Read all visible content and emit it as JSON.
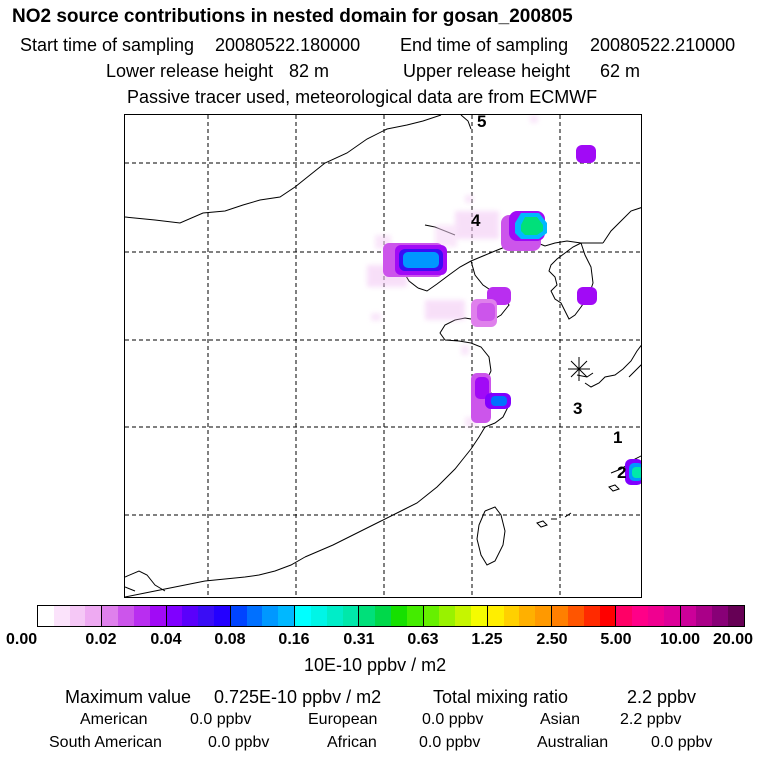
{
  "header": {
    "title": "NO2 source contributions in nested domain for gosan_200805",
    "start_label": "Start time of sampling",
    "start_value": "20080522.180000",
    "end_label": "End time of sampling",
    "end_value": "20080522.210000",
    "lower_label": "Lower release height",
    "lower_value": "82 m",
    "upper_label": "Upper release height",
    "upper_value": "62 m",
    "tracer_note": "Passive tracer used, meteorological data are from ECMWF"
  },
  "map": {
    "trajectory_labels": [
      "5",
      "4",
      "3",
      "1",
      "2"
    ],
    "receptor_icon": "asterisk-icon",
    "concentration_levels": [
      "0.02",
      "0.04",
      "0.08",
      "0.16",
      "0.31",
      "0.63"
    ]
  },
  "colorbar": {
    "tick_labels": [
      "0.00",
      "0.02",
      "0.04",
      "0.08",
      "0.16",
      "0.31",
      "0.63",
      "1.25",
      "2.50",
      "5.00",
      "10.00",
      "20.00"
    ],
    "colors": [
      [
        "#ffffff",
        "#fbe3fb",
        "#f5c8f6",
        "#eeaaf2"
      ],
      [
        "#df80ec",
        "#cc55eb",
        "#b92ef0",
        "#a10af6"
      ],
      [
        "#8000ff",
        "#5a00fb",
        "#3a0df5",
        "#2400ff"
      ],
      [
        "#0044ff",
        "#0070ff",
        "#0098ff",
        "#00b8ff"
      ],
      [
        "#00ffff",
        "#00f5e6",
        "#00edc8",
        "#00e8aa"
      ],
      [
        "#00e07a",
        "#00d84a",
        "#16e000",
        "#44ec00"
      ],
      [
        "#66f000",
        "#99f200",
        "#c6f500",
        "#f5fc00"
      ],
      [
        "#ffee00",
        "#ffd000",
        "#ffb000",
        "#ff9900"
      ],
      [
        "#ff7f00",
        "#ff5500",
        "#ff2a00",
        "#ff0000"
      ],
      [
        "#ff0066",
        "#ff0088",
        "#f00090",
        "#dd0099"
      ],
      [
        "#cc0099",
        "#aa0088",
        "#880077",
        "#660055"
      ]
    ],
    "unit": "10E-10 ppbv / m2"
  },
  "stats": {
    "max_label": "Maximum value",
    "max_value": "0.725E-10 ppbv / m2",
    "total_label": "Total mixing ratio",
    "total_value": "2.2 ppbv"
  },
  "regions": {
    "american_label": "American",
    "american_value": "0.0 ppbv",
    "european_label": "European",
    "european_value": "0.0 ppbv",
    "asian_label": "Asian",
    "asian_value": "2.2 ppbv",
    "south_american_label": "South American",
    "south_american_value": "0.0 ppbv",
    "african_label": "African",
    "african_value": "0.0 ppbv",
    "australian_label": "Australian",
    "australian_value": "0.0 ppbv"
  }
}
